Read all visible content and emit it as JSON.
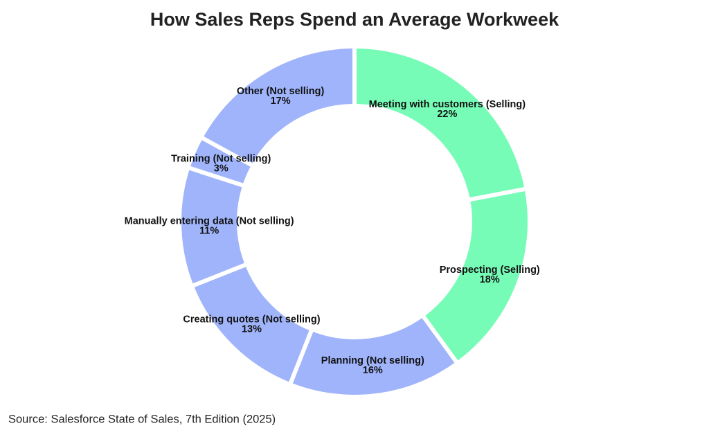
{
  "chart_data": {
    "type": "donut",
    "title": "How Sales Reps Spend an Average Workweek",
    "categories": [
      "Meeting with customers (Selling)",
      "Prospecting (Selling)",
      "Planning (Not selling)",
      "Creating quotes (Not selling)",
      "Manually entering data (Not selling)",
      "Training (Not selling)",
      "Other (Not selling)"
    ],
    "values": [
      22,
      18,
      16,
      13,
      11,
      3,
      17
    ],
    "value_labels": [
      "22%",
      "18%",
      "16%",
      "13%",
      "11%",
      "3%",
      "17%"
    ],
    "colors": [
      "#76fcb6",
      "#76fcb6",
      "#a0b4fb",
      "#a0b4fb",
      "#a0b4fb",
      "#a0b4fb",
      "#a0b4fb"
    ],
    "source": "Source: Salesforce State of Sales, 7th Edition (2025)"
  }
}
